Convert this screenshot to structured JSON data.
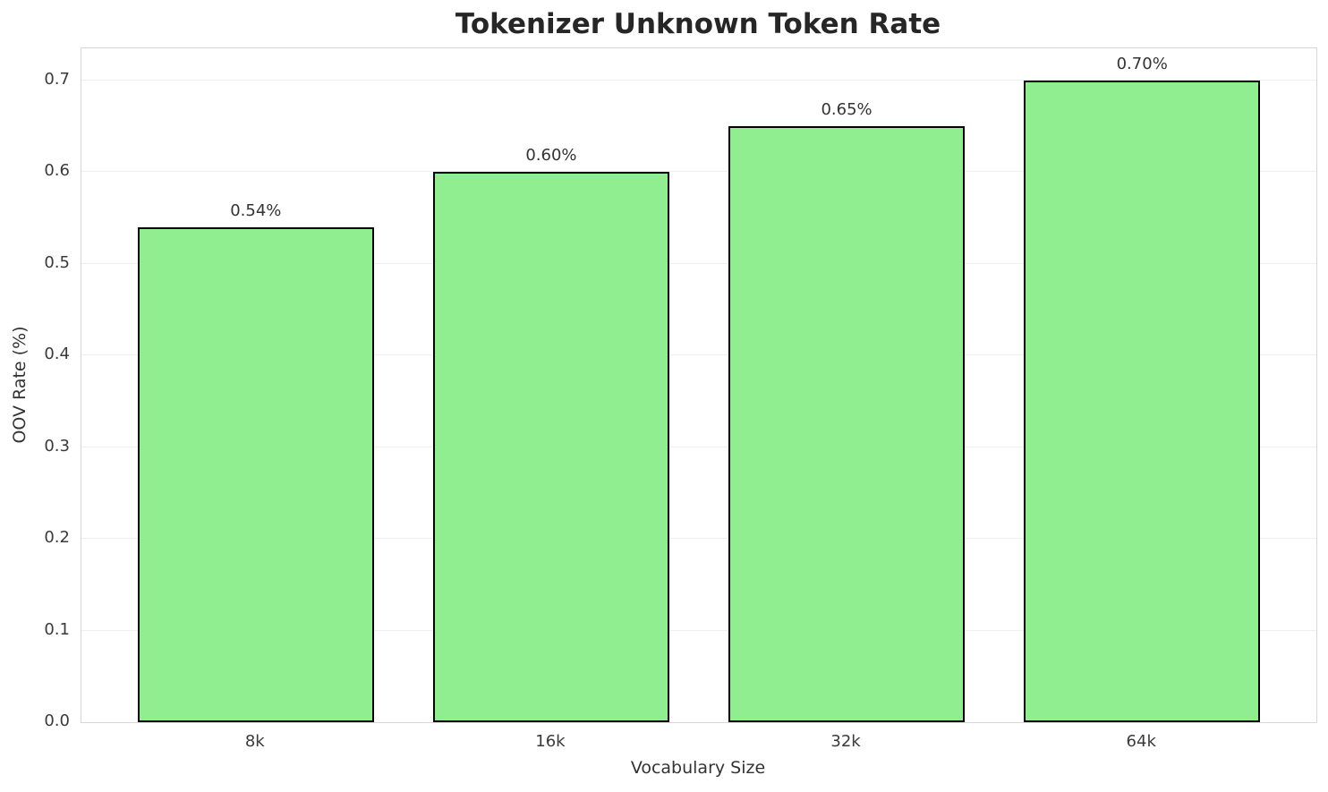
{
  "chart_data": {
    "type": "bar",
    "title": "Tokenizer Unknown Token Rate",
    "categories": [
      "8k",
      "16k",
      "32k",
      "64k"
    ],
    "values": [
      0.54,
      0.6,
      0.65,
      0.7
    ],
    "bar_labels": [
      "0.54%",
      "0.60%",
      "0.65%",
      "0.70%"
    ],
    "xlabel": "Vocabulary Size",
    "ylabel": "OOV Rate (%)",
    "ylim": [
      0,
      0.735
    ],
    "xlim": [
      -0.59,
      3.59
    ],
    "bar_width": 0.8,
    "ytick_labels": [
      "0.0",
      "0.1",
      "0.2",
      "0.3",
      "0.4",
      "0.5",
      "0.6",
      "0.7"
    ],
    "ytick_values": [
      0.0,
      0.1,
      0.2,
      0.3,
      0.4,
      0.5,
      0.6,
      0.7
    ],
    "grid": "horizontal",
    "legend": "none",
    "colors": {
      "bar_fill": "#90EE90",
      "bar_edge": "#000000",
      "grid": "#efefef",
      "spine": "#d6d6d6",
      "title": "#262626",
      "tick": "#3a3a3a"
    }
  }
}
